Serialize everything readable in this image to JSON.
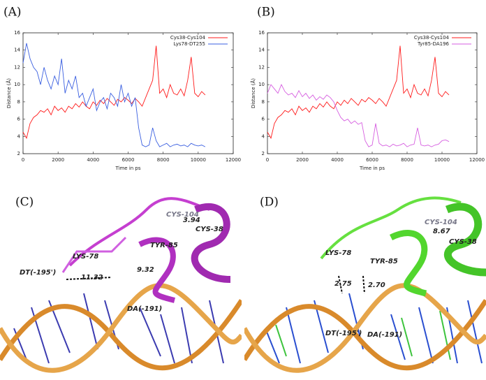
{
  "chart_data": [
    {
      "type": "line",
      "panel": "(A)",
      "xlabel": "Time in ps",
      "ylabel": "Distance (Å)",
      "xlim": [
        0,
        12000
      ],
      "xticks": [
        0,
        2000,
        4000,
        6000,
        8000,
        10000,
        12000
      ],
      "ylim": [
        2,
        16
      ],
      "yticks": [
        2,
        4,
        6,
        8,
        10,
        12,
        14,
        16
      ],
      "legend": "upper right",
      "x": [
        0,
        200,
        400,
        600,
        800,
        1000,
        1200,
        1400,
        1600,
        1800,
        2000,
        2200,
        2400,
        2600,
        2800,
        3000,
        3200,
        3400,
        3600,
        3800,
        4000,
        4200,
        4400,
        4600,
        4800,
        5000,
        5200,
        5400,
        5600,
        5800,
        6000,
        6200,
        6400,
        6600,
        6800,
        7000,
        7200,
        7400,
        7600,
        7800,
        8000,
        8200,
        8400,
        8600,
        8800,
        9000,
        9200,
        9400,
        9600,
        9800,
        10000,
        10200,
        10400
      ],
      "series": [
        {
          "name": "Cys38-Cys104",
          "color": "#ff1a1a",
          "values": [
            4.5,
            3.8,
            5.5,
            6.2,
            6.5,
            7,
            6.8,
            7.2,
            6.5,
            7.5,
            7,
            7.3,
            6.8,
            7.5,
            7.2,
            7.8,
            7.4,
            8,
            7.5,
            7.2,
            8,
            7.6,
            8.2,
            7.8,
            8.4,
            8,
            7.6,
            8.3,
            8,
            8.5,
            8.2,
            7.8,
            8.4,
            8,
            7.5,
            8.5,
            9.5,
            10.5,
            14.5,
            9,
            9.5,
            8.5,
            10,
            9,
            8.8,
            9.5,
            8.7,
            10.5,
            13.2,
            9,
            8.6,
            9.2,
            8.8
          ]
        },
        {
          "name": "Lys78-DT255",
          "color": "#3a5fe0",
          "values": [
            12.5,
            14.8,
            13,
            12,
            11.5,
            10,
            12,
            10.5,
            9.5,
            11,
            10,
            13,
            9,
            10.5,
            9.5,
            11,
            8.5,
            9,
            7.5,
            8.5,
            9.5,
            7,
            8,
            8.5,
            7.2,
            9,
            8.5,
            7.5,
            10,
            8,
            9,
            7.5,
            8.5,
            5,
            3,
            2.8,
            3,
            5,
            3.5,
            2.8,
            3,
            3.2,
            2.8,
            3,
            3.1,
            2.9,
            3,
            2.8,
            3.2,
            3,
            2.9,
            3,
            2.8
          ]
        }
      ]
    },
    {
      "type": "line",
      "panel": "(B)",
      "xlabel": "Time in ps",
      "ylabel": "Distance (Å)",
      "xlim": [
        0,
        12000
      ],
      "xticks": [
        0,
        2000,
        4000,
        6000,
        8000,
        10000,
        12000
      ],
      "ylim": [
        2,
        16
      ],
      "yticks": [
        2,
        4,
        6,
        8,
        10,
        12,
        14,
        16
      ],
      "legend": "upper right",
      "x": [
        0,
        200,
        400,
        600,
        800,
        1000,
        1200,
        1400,
        1600,
        1800,
        2000,
        2200,
        2400,
        2600,
        2800,
        3000,
        3200,
        3400,
        3600,
        3800,
        4000,
        4200,
        4400,
        4600,
        4800,
        5000,
        5200,
        5400,
        5600,
        5800,
        6000,
        6200,
        6400,
        6600,
        6800,
        7000,
        7200,
        7400,
        7600,
        7800,
        8000,
        8200,
        8400,
        8600,
        8800,
        9000,
        9200,
        9400,
        9600,
        9800,
        10000,
        10200,
        10400
      ],
      "series": [
        {
          "name": "Cys38-Cys104",
          "color": "#ff1a1a",
          "values": [
            4.5,
            3.8,
            5.5,
            6.2,
            6.5,
            7,
            6.8,
            7.2,
            6.5,
            7.5,
            7,
            7.3,
            6.8,
            7.5,
            7.2,
            7.8,
            7.4,
            8,
            7.5,
            7.2,
            8,
            7.6,
            8.2,
            7.8,
            8.4,
            8,
            7.6,
            8.3,
            8,
            8.5,
            8.2,
            7.8,
            8.4,
            8,
            7.5,
            8.5,
            9.5,
            10.5,
            14.5,
            9,
            9.5,
            8.5,
            10,
            9,
            8.8,
            9.5,
            8.7,
            10.5,
            13.2,
            9,
            8.6,
            9.2,
            8.8
          ]
        },
        {
          "name": "Tyr85-DA196",
          "color": "#d65ee0",
          "values": [
            9,
            10,
            9.5,
            9,
            10,
            9.2,
            8.8,
            9,
            8.5,
            9.3,
            8.6,
            9,
            8.4,
            8.8,
            8.2,
            8.6,
            8.3,
            8.8,
            8.5,
            8,
            7,
            6.2,
            5.8,
            6,
            5.5,
            5.8,
            5.4,
            5.6,
            3.5,
            2.8,
            3,
            5.5,
            3.2,
            2.9,
            3,
            2.8,
            3.1,
            2.9,
            3,
            3.2,
            2.8,
            3,
            3.1,
            5,
            3,
            2.9,
            3,
            2.8,
            3,
            3.1,
            3.5,
            3.6,
            3.4
          ]
        }
      ]
    }
  ],
  "structures": [
    {
      "panel": "(C)",
      "labels": [
        "CYS-104",
        "3.94",
        "CYS-38",
        "TYR-85",
        "LYS-78",
        "DT(-195')",
        "11.32",
        "9.32",
        "DA(-191)"
      ]
    },
    {
      "panel": "(D)",
      "labels": [
        "CYS-104",
        "8.67",
        "CYS-38",
        "LYS-78",
        "TYR-85",
        "2.75",
        "2.70",
        "DT(-195')",
        "DA(-191)"
      ]
    }
  ]
}
